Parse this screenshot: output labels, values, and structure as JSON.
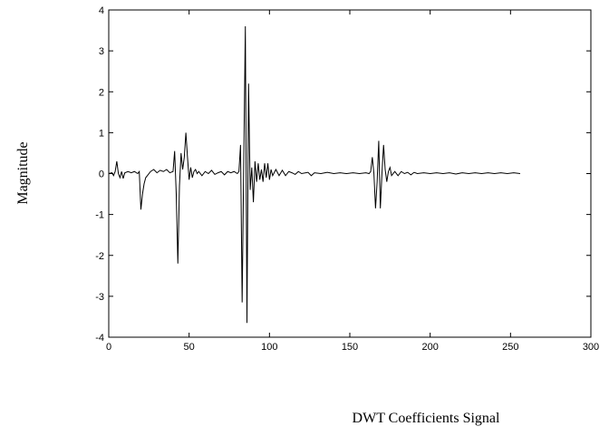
{
  "chart_data": {
    "type": "line",
    "x_label": "DWT Coefficients Signal",
    "y_label": "Magnitude",
    "xlim": [
      0,
      300
    ],
    "ylim": [
      -4,
      4
    ],
    "xticks": [
      0,
      50,
      100,
      150,
      200,
      250,
      300
    ],
    "yticks": [
      -4,
      -3,
      -2,
      -1,
      0,
      1,
      2,
      3,
      4
    ],
    "x": [
      0,
      2,
      3,
      4,
      5,
      6,
      7,
      8,
      9,
      10,
      12,
      14,
      16,
      18,
      19,
      20,
      21,
      22,
      23,
      24,
      26,
      28,
      30,
      32,
      34,
      36,
      38,
      40,
      41,
      42,
      43,
      44,
      45,
      46,
      47,
      48,
      49,
      50,
      51,
      52,
      53,
      54,
      55,
      56,
      58,
      60,
      62,
      64,
      66,
      68,
      70,
      72,
      74,
      76,
      78,
      80,
      81,
      82,
      83,
      84,
      85,
      86,
      87,
      88,
      89,
      90,
      91,
      92,
      93,
      94,
      95,
      96,
      97,
      98,
      99,
      100,
      101,
      102,
      104,
      106,
      108,
      110,
      112,
      114,
      116,
      118,
      120,
      124,
      126,
      128,
      132,
      136,
      140,
      144,
      148,
      152,
      156,
      160,
      162,
      163,
      164,
      165,
      166,
      167,
      168,
      169,
      170,
      171,
      172,
      173,
      174,
      175,
      176,
      178,
      180,
      182,
      184,
      186,
      188,
      190,
      192,
      196,
      200,
      204,
      208,
      212,
      216,
      220,
      224,
      228,
      232,
      236,
      240,
      244,
      248,
      252,
      256
    ],
    "series": [
      {
        "color": "#000000",
        "values": [
          0,
          0.02,
          -0.05,
          0.05,
          0.3,
          0,
          -0.1,
          0.05,
          -0.12,
          0.02,
          0.05,
          0.02,
          0.05,
          0,
          0.05,
          -0.88,
          -0.5,
          -0.25,
          -0.1,
          -0.05,
          0.05,
          0.1,
          0.02,
          0.08,
          0.05,
          0.1,
          0.02,
          0.05,
          0.55,
          -0.5,
          -2.2,
          -0.3,
          0.5,
          0.1,
          0.4,
          1.0,
          0.4,
          -0.15,
          0.15,
          -0.1,
          0.05,
          0.1,
          0,
          0.05,
          -0.05,
          0.05,
          0,
          0.08,
          -0.02,
          0.02,
          0.05,
          -0.03,
          0.05,
          0.02,
          0.05,
          0,
          0.05,
          0.7,
          -3.15,
          0.3,
          3.6,
          -3.65,
          2.2,
          -0.4,
          0.15,
          -0.7,
          0.3,
          -0.2,
          0.25,
          -0.15,
          0.1,
          -0.2,
          0.25,
          -0.1,
          0.25,
          -0.15,
          0.1,
          -0.05,
          0.1,
          -0.05,
          0.08,
          -0.05,
          0.05,
          0.02,
          -0.02,
          0.05,
          0,
          0.03,
          -0.05,
          0.02,
          0,
          0.03,
          0,
          0.02,
          0,
          0.02,
          0,
          0.02,
          0,
          0.05,
          0.4,
          0,
          -0.85,
          -0.2,
          0.8,
          -0.85,
          0,
          0.7,
          0.1,
          -0.2,
          0.05,
          0.15,
          -0.05,
          0.05,
          -0.05,
          0.05,
          0,
          0.03,
          -0.03,
          0.03,
          0,
          0.02,
          0,
          0.02,
          0,
          0.02,
          -0.01,
          0.02,
          0,
          0.02,
          0,
          0.02,
          0,
          0.02,
          0,
          0.02,
          0
        ]
      }
    ]
  }
}
